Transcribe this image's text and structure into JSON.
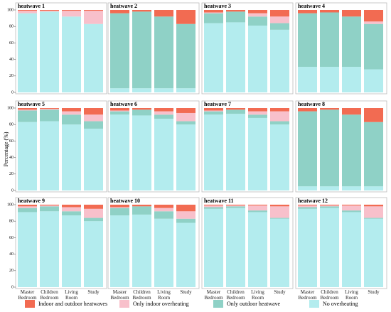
{
  "chart_data": {
    "type": "bar",
    "stacked": true,
    "ylabel": "Percentage (%)",
    "categories": [
      "Master Bedroom",
      "Children Bedroom",
      "Living Room",
      "Study"
    ],
    "ylim": [
      0,
      100
    ],
    "yticks": [
      0,
      20,
      40,
      60,
      80,
      100
    ],
    "series": [
      {
        "name": "No overheating",
        "color": "#b3ecee"
      },
      {
        "name": "Only outdoor heatwave",
        "color": "#8fd1c6"
      },
      {
        "name": "Only indoor overheating",
        "color": "#f8c0cb"
      },
      {
        "name": "Indoor and outdoor heatwaves",
        "color": "#f26b52"
      }
    ],
    "panels": [
      {
        "title": "heatwave 1",
        "values": [
          [
            96,
            98,
            92,
            83
          ],
          [
            0,
            0,
            0,
            0
          ],
          [
            3,
            1,
            7,
            16
          ],
          [
            1,
            1,
            1,
            1
          ]
        ]
      },
      {
        "title": "heatwave 2",
        "values": [
          [
            5,
            5,
            5,
            5
          ],
          [
            91,
            93,
            87,
            78
          ],
          [
            0,
            0,
            0,
            0
          ],
          [
            4,
            2,
            8,
            17
          ]
        ]
      },
      {
        "title": "heatwave 3",
        "values": [
          [
            84,
            85,
            81,
            76
          ],
          [
            12,
            13,
            11,
            8
          ],
          [
            1,
            0,
            4,
            8
          ],
          [
            3,
            2,
            4,
            8
          ]
        ]
      },
      {
        "title": "heatwave 4",
        "values": [
          [
            31,
            31,
            31,
            28
          ],
          [
            65,
            66,
            61,
            55
          ],
          [
            0,
            0,
            0,
            3
          ],
          [
            4,
            3,
            8,
            14
          ]
        ]
      },
      {
        "title": "heatwave 5",
        "values": [
          [
            83,
            84,
            80,
            75
          ],
          [
            14,
            14,
            12,
            9
          ],
          [
            1,
            1,
            4,
            8
          ],
          [
            2,
            1,
            4,
            8
          ]
        ]
      },
      {
        "title": "heatwave 6",
        "values": [
          [
            92,
            91,
            87,
            80
          ],
          [
            4,
            7,
            5,
            4
          ],
          [
            1,
            0,
            4,
            10
          ],
          [
            3,
            2,
            4,
            6
          ]
        ]
      },
      {
        "title": "heatwave 7",
        "values": [
          [
            92,
            93,
            88,
            80
          ],
          [
            4,
            5,
            4,
            4
          ],
          [
            1,
            0,
            4,
            12
          ],
          [
            3,
            2,
            4,
            4
          ]
        ]
      },
      {
        "title": "heatwave 8",
        "values": [
          [
            5,
            5,
            5,
            5
          ],
          [
            91,
            93,
            87,
            78
          ],
          [
            0,
            0,
            0,
            0
          ],
          [
            4,
            2,
            8,
            17
          ]
        ]
      },
      {
        "title": "heatwave 9",
        "values": [
          [
            91,
            92,
            87,
            80
          ],
          [
            5,
            6,
            5,
            4
          ],
          [
            2,
            1,
            5,
            11
          ],
          [
            2,
            1,
            3,
            5
          ]
        ]
      },
      {
        "title": "heatwave 10",
        "values": [
          [
            87,
            88,
            83,
            78
          ],
          [
            9,
            10,
            9,
            5
          ],
          [
            1,
            0,
            4,
            9
          ],
          [
            3,
            2,
            4,
            8
          ]
        ]
      },
      {
        "title": "heatwave 11",
        "values": [
          [
            95,
            96,
            91,
            83
          ],
          [
            2,
            2,
            2,
            1
          ],
          [
            2,
            1,
            6,
            14
          ],
          [
            1,
            1,
            1,
            2
          ]
        ]
      },
      {
        "title": "heatwave 12",
        "values": [
          [
            95,
            96,
            91,
            83
          ],
          [
            2,
            2,
            2,
            1
          ],
          [
            2,
            1,
            6,
            14
          ],
          [
            1,
            1,
            1,
            2
          ]
        ]
      }
    ]
  }
}
